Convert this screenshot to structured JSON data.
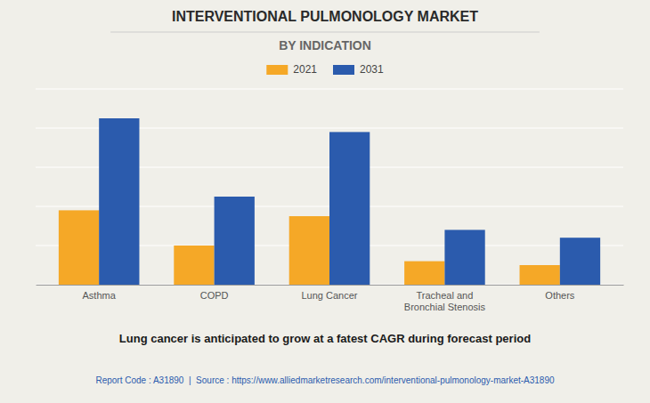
{
  "chart_data": {
    "type": "bar",
    "title": "INTERVENTIONAL PULMONOLOGY MARKET",
    "subtitle": "BY INDICATION",
    "categories": [
      "Asthma",
      "COPD",
      "Lung Cancer",
      "Tracheal and\nBronchial Stenosis",
      "Others"
    ],
    "series": [
      {
        "name": "2021",
        "color": "#F5A827",
        "values": [
          3.8,
          2.0,
          3.5,
          1.2,
          1.0
        ]
      },
      {
        "name": "2031",
        "color": "#2B5BAD",
        "values": [
          8.5,
          4.5,
          7.8,
          2.8,
          2.4
        ]
      }
    ],
    "ylim": [
      0,
      10
    ],
    "yticks": [
      0,
      2,
      4,
      6,
      8,
      10
    ],
    "grid": true,
    "tick_labels": "x",
    "legend": "top",
    "annotations": [
      "Lung cancer is anticipated to grow at a fatest CAGR during forecast period",
      "Report Code : A31890  |  Source : https://www.alliedmarketresearch.com/interventional-pulmonology-market-A31890"
    ]
  }
}
